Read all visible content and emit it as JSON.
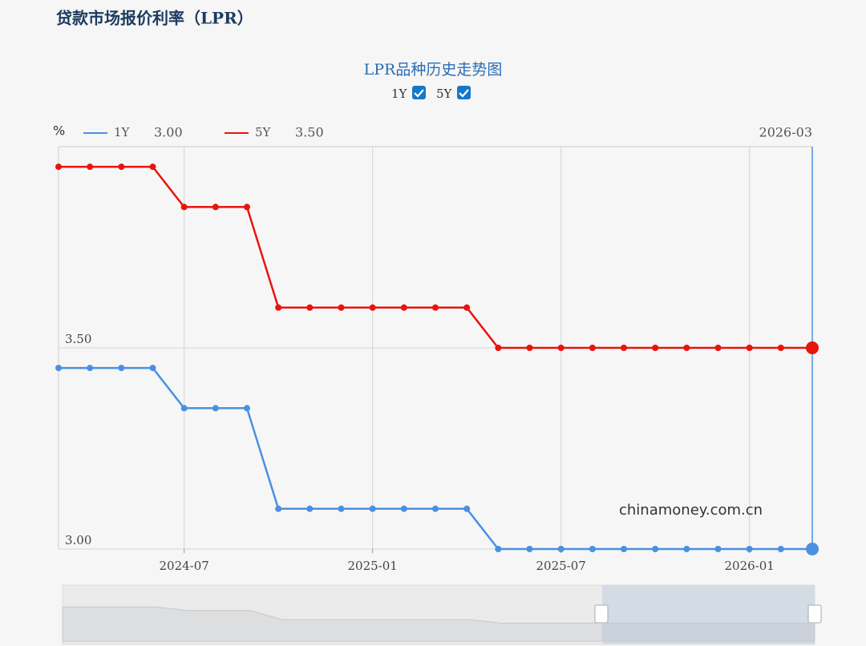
{
  "header": {
    "title": "贷款市场报价利率（LPR）"
  },
  "chart_data": {
    "type": "line",
    "title": "LPR品种历史走势图",
    "y_unit": "%",
    "x": [
      "2024-03",
      "2024-04",
      "2024-05",
      "2024-06",
      "2024-07",
      "2024-08",
      "2024-09",
      "2024-10",
      "2024-11",
      "2024-12",
      "2025-01",
      "2025-02",
      "2025-03",
      "2025-04",
      "2025-05",
      "2025-06",
      "2025-07",
      "2025-08",
      "2025-09",
      "2025-10",
      "2025-11",
      "2025-12",
      "2026-01",
      "2026-02",
      "2026-03"
    ],
    "series": [
      {
        "name": "1Y",
        "color": "#4a90e2",
        "latest_label": "3.00",
        "values": [
          3.45,
          3.45,
          3.45,
          3.45,
          3.35,
          3.35,
          3.35,
          3.1,
          3.1,
          3.1,
          3.1,
          3.1,
          3.1,
          3.1,
          3.0,
          3.0,
          3.0,
          3.0,
          3.0,
          3.0,
          3.0,
          3.0,
          3.0,
          3.0,
          3.0
        ]
      },
      {
        "name": "5Y",
        "color": "#e8140e",
        "latest_label": "3.50",
        "values": [
          3.95,
          3.95,
          3.95,
          3.95,
          3.85,
          3.85,
          3.85,
          3.6,
          3.6,
          3.6,
          3.6,
          3.6,
          3.6,
          3.6,
          3.5,
          3.5,
          3.5,
          3.5,
          3.5,
          3.5,
          3.5,
          3.5,
          3.5,
          3.5,
          3.5
        ]
      }
    ],
    "cursor_x": "2026-03",
    "ylim": [
      3.0,
      4.0
    ],
    "yticks": [
      {
        "value": 3.0,
        "label": "3.00"
      },
      {
        "value": 3.5,
        "label": "3.50"
      }
    ],
    "xticks": [
      "2024-07",
      "2025-01",
      "2025-07",
      "2026-01"
    ],
    "grid": true,
    "watermark": "chinamoney.com.cn"
  }
}
